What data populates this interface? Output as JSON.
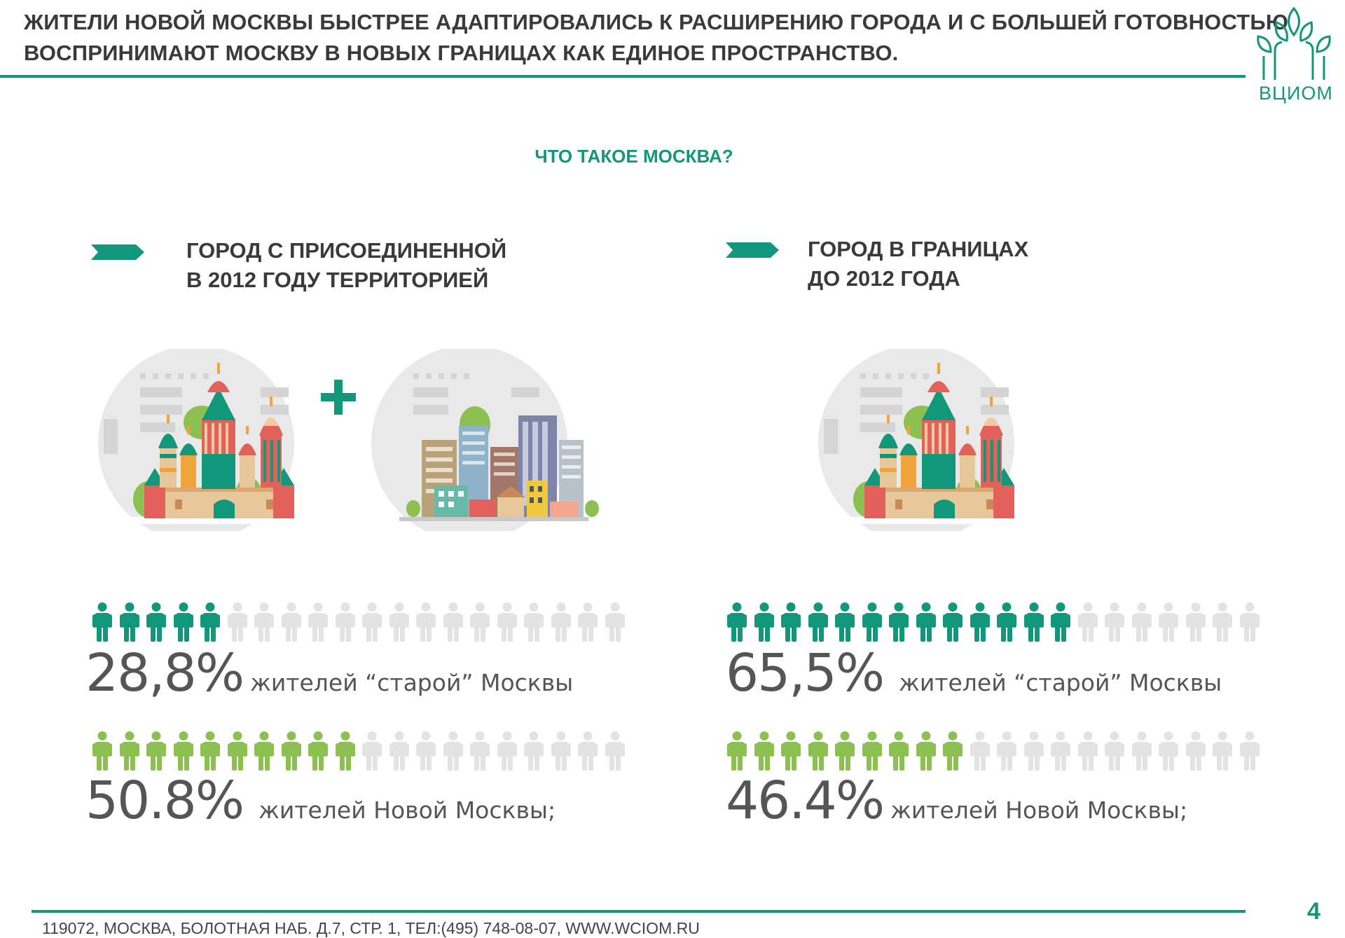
{
  "header": {
    "title_lines": [
      "ЖИТЕЛИ НОВОЙ МОСКВЫ БЫСТРЕЕ АДАПТИРОВАЛИСЬ К РАСШИРЕНИЮ ГОРОДА И С БОЛЬШЕЙ ГОТОВНОСТЬЮ",
      "ВОСПРИНИМАЮТ МОСКВУ В НОВЫХ ГРАНИЦАХ КАК ЕДИНОЕ ПРОСТРАНСТВО."
    ],
    "logo_text": "ВЦИОМ",
    "logo_icon": "tree-logo-icon"
  },
  "subtitle": "ЧТО ТАКОЕ МОСКВА?",
  "colors": {
    "accent": "#12977a",
    "teal_person": "#12977a",
    "green_person": "#8cc152",
    "grey_person": "#e3e3e3",
    "text": "#3a3a3a"
  },
  "sections": [
    {
      "heading_lines": [
        "ГОРОД С ПРИСОЕДИНЕННОЙ",
        "В 2012 ГОДУ ТЕРРИТОРИЕЙ"
      ],
      "illustrations": [
        "kremlin-illustration",
        "plus-icon",
        "modern-city-illustration"
      ],
      "stats": [
        {
          "value": "28,8%",
          "label": "жителей “старой” Москвы",
          "fraction": 0.288,
          "icons_total": 20,
          "color": "teal"
        },
        {
          "value": "50.8%",
          "label": "жителей Новой Москвы;",
          "fraction": 0.508,
          "icons_total": 20,
          "color": "green"
        }
      ]
    },
    {
      "heading_lines": [
        "ГОРОД В ГРАНИЦАХ",
        "ДО 2012 ГОДА"
      ],
      "illustrations": [
        "kremlin-illustration"
      ],
      "stats": [
        {
          "value": "65,5%",
          "label": "жителей “старой” Москвы",
          "fraction": 0.655,
          "icons_total": 20,
          "color": "teal"
        },
        {
          "value": "46.4%",
          "label": "жителей Новой Москвы;",
          "fraction": 0.464,
          "icons_total": 20,
          "color": "green"
        }
      ]
    }
  ],
  "footer": {
    "address": "119072, МОСКВА, БОЛОТНАЯ НАБ. Д.7, СТР. 1, ТЕЛ:(495) 748-08-07, WWW.WCIOM.RU",
    "page_number": "4"
  }
}
